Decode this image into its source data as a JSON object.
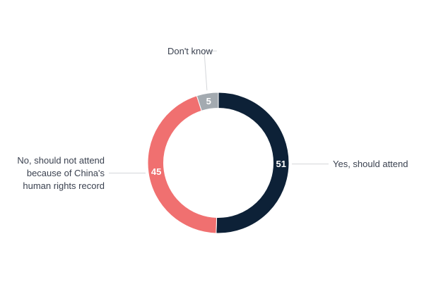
{
  "chart_data": {
    "type": "pie",
    "subtype": "donut",
    "title": "",
    "categories": [
      "Yes, should attend",
      "No, should not attend because of China's human rights record",
      "Don't know"
    ],
    "values": [
      51,
      45,
      5
    ],
    "value_labels": [
      "51",
      "45",
      "5"
    ],
    "label_lines": [
      [
        "Yes, should attend"
      ],
      [
        "No, should not attend",
        "because of China's",
        "human rights record"
      ],
      [
        "Don't know"
      ]
    ],
    "colors": [
      "#0d2137",
      "#f07070",
      "#a3aab0"
    ],
    "legend": "none"
  }
}
